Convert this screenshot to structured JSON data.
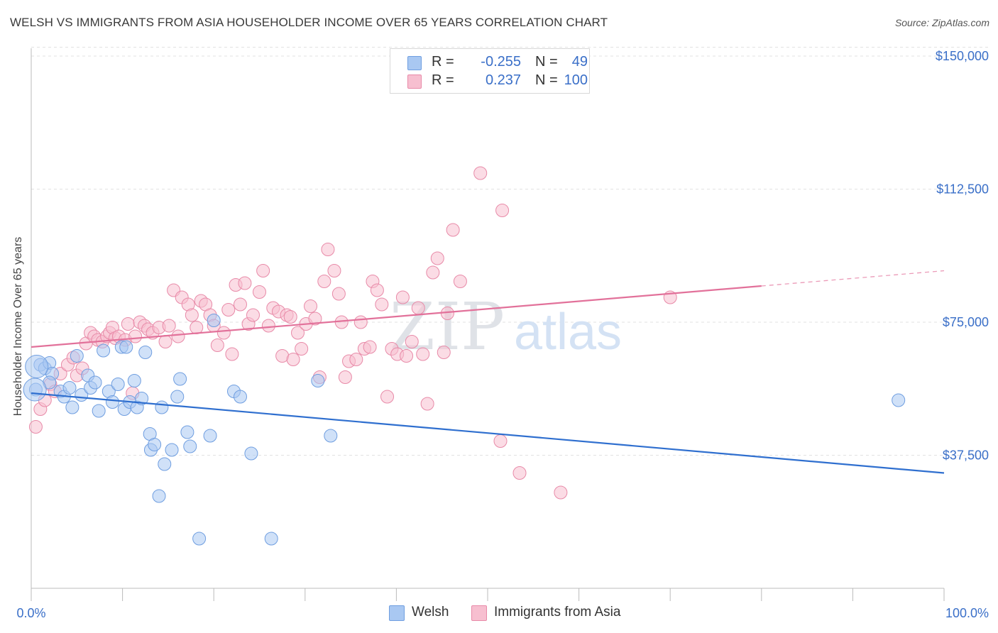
{
  "title": "WELSH VS IMMIGRANTS FROM ASIA HOUSEHOLDER INCOME OVER 65 YEARS CORRELATION CHART",
  "source": "Source: ZipAtlas.com",
  "watermark": {
    "zip": "ZIP",
    "atlas": "atlas"
  },
  "legend_top": [
    {
      "r_label": "R =",
      "r_value": "-0.255",
      "n_label": "N =",
      "n_value": "49",
      "color": "#a9c8f2",
      "border": "#6f9ee0"
    },
    {
      "r_label": "R =",
      "r_value": "0.237",
      "n_label": "N =",
      "n_value": "100",
      "color": "#f7bfd0",
      "border": "#e88aa8"
    }
  ],
  "legend_bottom": [
    {
      "label": "Welsh",
      "color": "#a9c8f2",
      "border": "#6f9ee0"
    },
    {
      "label": "Immigrants from Asia",
      "color": "#f7bfd0",
      "border": "#e88aa8"
    }
  ],
  "chart_data": {
    "type": "scatter",
    "ylabel": "Householder Income Over 65 years",
    "xlabel": "",
    "x_ticks": [
      "0.0%",
      "100.0%"
    ],
    "xlim": [
      0,
      100
    ],
    "ylim": [
      0,
      155000
    ],
    "y_ticks": [
      {
        "value": 150000,
        "label": "$150,000"
      },
      {
        "value": 112500,
        "label": "$112,500"
      },
      {
        "value": 75000,
        "label": "$75,000"
      },
      {
        "value": 37500,
        "label": "$37,500"
      }
    ],
    "grid": "horizontal dashed",
    "series": [
      {
        "name": "Welsh",
        "color": "#a9c8f2",
        "stroke": "#6f9ee0",
        "line_color": "#2f6fcf",
        "trend": {
          "x": [
            0,
            100
          ],
          "y": [
            55000,
            32500
          ],
          "dashed_from": null
        },
        "points": [
          [
            0.5,
            56000
          ],
          [
            1.0,
            63000
          ],
          [
            1.5,
            62000
          ],
          [
            2.0,
            63500
          ],
          [
            2.3,
            60500
          ],
          [
            3.2,
            55500
          ],
          [
            3.6,
            54000
          ],
          [
            4.2,
            56500
          ],
          [
            4.5,
            51000
          ],
          [
            5.0,
            65500
          ],
          [
            5.5,
            54500
          ],
          [
            6.2,
            60000
          ],
          [
            6.5,
            56500
          ],
          [
            7.0,
            58000
          ],
          [
            7.4,
            50000
          ],
          [
            7.9,
            67000
          ],
          [
            8.5,
            55500
          ],
          [
            8.9,
            52500
          ],
          [
            9.5,
            57500
          ],
          [
            9.9,
            68000
          ],
          [
            10.2,
            50500
          ],
          [
            10.4,
            68000
          ],
          [
            10.8,
            52500
          ],
          [
            11.3,
            58500
          ],
          [
            11.6,
            51000
          ],
          [
            12.1,
            53500
          ],
          [
            12.5,
            66500
          ],
          [
            13.0,
            43500
          ],
          [
            13.1,
            39000
          ],
          [
            13.5,
            40500
          ],
          [
            14.0,
            26000
          ],
          [
            14.3,
            51000
          ],
          [
            14.6,
            35000
          ],
          [
            15.4,
            39000
          ],
          [
            16.0,
            54000
          ],
          [
            16.3,
            59000
          ],
          [
            17.1,
            44000
          ],
          [
            17.4,
            40000
          ],
          [
            18.4,
            14000
          ],
          [
            19.6,
            43000
          ],
          [
            20.0,
            75500
          ],
          [
            22.2,
            55500
          ],
          [
            22.9,
            54000
          ],
          [
            24.1,
            38000
          ],
          [
            26.3,
            14000
          ],
          [
            31.4,
            58500
          ],
          [
            32.8,
            43000
          ],
          [
            95.0,
            53000
          ],
          [
            2.0,
            58000
          ]
        ],
        "big_points": [
          [
            0.6,
            62500
          ],
          [
            0.4,
            56000
          ]
        ]
      },
      {
        "name": "Immigrants from Asia",
        "color": "#f7bfd0",
        "stroke": "#e88aa8",
        "line_color": "#e2719a",
        "trend": {
          "x": [
            0,
            100
          ],
          "y": [
            68000,
            89500
          ],
          "dashed_from": 80
        },
        "points": [
          [
            0.5,
            45500
          ],
          [
            1.0,
            50500
          ],
          [
            1.5,
            53000
          ],
          [
            2.1,
            57500
          ],
          [
            2.6,
            55500
          ],
          [
            3.2,
            60500
          ],
          [
            4.0,
            63000
          ],
          [
            4.6,
            65000
          ],
          [
            5.0,
            60000
          ],
          [
            5.6,
            62000
          ],
          [
            6.0,
            69000
          ],
          [
            6.5,
            72000
          ],
          [
            6.9,
            71000
          ],
          [
            7.3,
            70000
          ],
          [
            7.8,
            69500
          ],
          [
            8.3,
            71000
          ],
          [
            8.6,
            72000
          ],
          [
            8.9,
            73500
          ],
          [
            9.2,
            70500
          ],
          [
            9.6,
            71000
          ],
          [
            10.3,
            70000
          ],
          [
            10.6,
            74500
          ],
          [
            11.1,
            55000
          ],
          [
            11.4,
            71000
          ],
          [
            11.9,
            75000
          ],
          [
            12.4,
            74000
          ],
          [
            12.8,
            73000
          ],
          [
            13.3,
            72000
          ],
          [
            14.0,
            73500
          ],
          [
            14.7,
            69500
          ],
          [
            15.1,
            74000
          ],
          [
            15.6,
            84000
          ],
          [
            16.1,
            71000
          ],
          [
            16.5,
            82000
          ],
          [
            17.2,
            80000
          ],
          [
            17.6,
            77000
          ],
          [
            18.1,
            73500
          ],
          [
            18.6,
            81000
          ],
          [
            19.1,
            80000
          ],
          [
            19.6,
            77000
          ],
          [
            20.0,
            74000
          ],
          [
            20.4,
            68500
          ],
          [
            21.1,
            72000
          ],
          [
            21.6,
            78500
          ],
          [
            22.0,
            66000
          ],
          [
            22.4,
            85500
          ],
          [
            22.9,
            80000
          ],
          [
            23.4,
            86000
          ],
          [
            23.8,
            74500
          ],
          [
            24.3,
            77000
          ],
          [
            25.0,
            83500
          ],
          [
            25.4,
            89500
          ],
          [
            26.0,
            74000
          ],
          [
            26.5,
            79000
          ],
          [
            27.1,
            78000
          ],
          [
            27.5,
            65500
          ],
          [
            28.0,
            77000
          ],
          [
            28.4,
            76500
          ],
          [
            28.7,
            64500
          ],
          [
            29.2,
            72000
          ],
          [
            29.6,
            67500
          ],
          [
            30.1,
            74500
          ],
          [
            30.6,
            79500
          ],
          [
            31.1,
            76000
          ],
          [
            31.6,
            59500
          ],
          [
            32.1,
            86500
          ],
          [
            32.5,
            95500
          ],
          [
            33.2,
            89500
          ],
          [
            33.7,
            83000
          ],
          [
            34.0,
            75000
          ],
          [
            34.4,
            59500
          ],
          [
            34.8,
            64000
          ],
          [
            35.6,
            64500
          ],
          [
            36.1,
            75000
          ],
          [
            36.5,
            67500
          ],
          [
            37.1,
            68000
          ],
          [
            37.4,
            86500
          ],
          [
            37.9,
            84000
          ],
          [
            38.4,
            80000
          ],
          [
            39.0,
            54000
          ],
          [
            39.5,
            67500
          ],
          [
            40.1,
            66000
          ],
          [
            40.7,
            82000
          ],
          [
            41.1,
            65500
          ],
          [
            41.7,
            69500
          ],
          [
            42.4,
            79000
          ],
          [
            42.9,
            66000
          ],
          [
            43.4,
            52000
          ],
          [
            44.0,
            89000
          ],
          [
            44.5,
            93000
          ],
          [
            45.2,
            66500
          ],
          [
            45.6,
            77500
          ],
          [
            46.2,
            101000
          ],
          [
            47.0,
            86500
          ],
          [
            49.2,
            117000
          ],
          [
            51.4,
            41500
          ],
          [
            51.6,
            106500
          ],
          [
            53.5,
            32500
          ],
          [
            58.0,
            27000
          ],
          [
            70.0,
            82000
          ]
        ],
        "big_points": []
      }
    ]
  }
}
